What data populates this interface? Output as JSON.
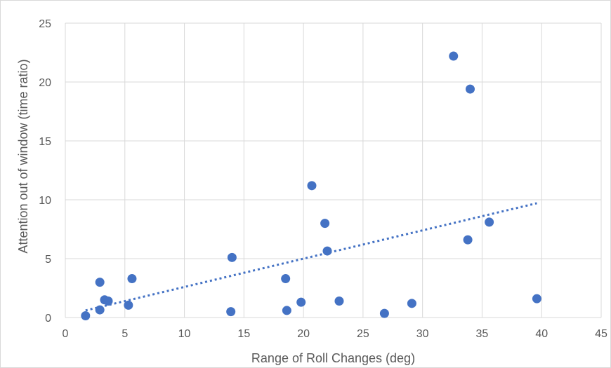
{
  "chart_data": {
    "type": "scatter",
    "title": "",
    "xlabel": "Range of Roll Changes (deg)",
    "ylabel": "Attention out of window (time ratio)",
    "xlim": [
      0,
      45
    ],
    "ylim": [
      0,
      25
    ],
    "xticks": [
      0,
      5,
      10,
      15,
      20,
      25,
      30,
      35,
      40,
      45
    ],
    "yticks": [
      0,
      5,
      10,
      15,
      20,
      25
    ],
    "grid": true,
    "marker_color": "#4472c4",
    "points": [
      {
        "x": 1.7,
        "y": 0.15
      },
      {
        "x": 2.9,
        "y": 0.65
      },
      {
        "x": 2.9,
        "y": 3.0
      },
      {
        "x": 3.3,
        "y": 1.5
      },
      {
        "x": 3.6,
        "y": 1.4
      },
      {
        "x": 5.3,
        "y": 1.05
      },
      {
        "x": 5.6,
        "y": 3.3
      },
      {
        "x": 13.9,
        "y": 0.5
      },
      {
        "x": 14.0,
        "y": 5.1
      },
      {
        "x": 18.5,
        "y": 3.3
      },
      {
        "x": 18.6,
        "y": 0.6
      },
      {
        "x": 19.8,
        "y": 1.3
      },
      {
        "x": 20.7,
        "y": 11.2
      },
      {
        "x": 21.8,
        "y": 8.0
      },
      {
        "x": 22.0,
        "y": 5.65
      },
      {
        "x": 23.0,
        "y": 1.4
      },
      {
        "x": 26.8,
        "y": 0.35
      },
      {
        "x": 29.1,
        "y": 1.2
      },
      {
        "x": 32.6,
        "y": 22.2
      },
      {
        "x": 33.8,
        "y": 6.6
      },
      {
        "x": 34.0,
        "y": 19.4
      },
      {
        "x": 35.6,
        "y": 8.1
      },
      {
        "x": 39.6,
        "y": 1.6
      }
    ],
    "trendline": {
      "style": "dotted",
      "linear": true,
      "color": "#4472c4",
      "x_range": [
        1.7,
        39.6
      ]
    }
  }
}
